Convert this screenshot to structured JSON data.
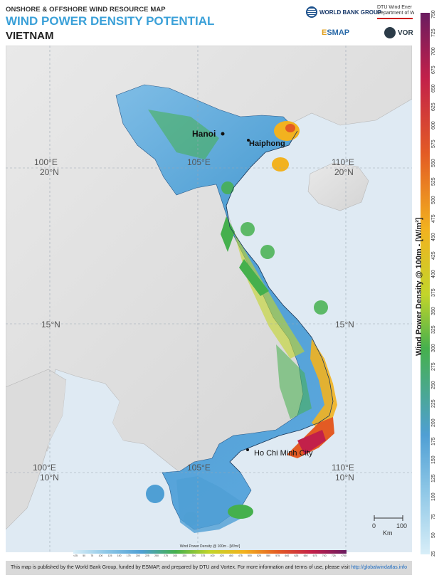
{
  "header": {
    "subtitle": "ONSHORE & OFFSHORE WIND RESOURCE MAP",
    "title": "WIND POWER DENSITY POTENTIAL",
    "country": "VIETNAM"
  },
  "logos": {
    "worldbank": "WORLD BANK GROUP",
    "dtu_line1": "DTU Wind Ener",
    "dtu_line2": "Department of W",
    "esmap_a": "E",
    "esmap_b": "SMAP",
    "vortex": "VOR"
  },
  "map": {
    "cities": [
      {
        "name": "Hanoi"
      },
      {
        "name": "Haiphong"
      },
      {
        "name": "Ho Chi Minh City"
      }
    ],
    "grid_labels": {
      "lon100_top": "100°E",
      "lat20_left": "20°N",
      "lon105_top": "105°E",
      "lon110_top": "110°E",
      "lat20_right": "20°N",
      "lat15_left": "15°N",
      "lat15_right": "15°N",
      "lon100_bot": "100°E",
      "lat10_left": "10°N",
      "lon105_bot": "105°E",
      "lon110_bot": "110°E",
      "lat10_right": "10°N"
    },
    "scalebar": {
      "zero": "0",
      "hundred": "100",
      "unit": "Km"
    }
  },
  "colorbar": {
    "label": "Wind Power Density @ 100m - [W/m²]",
    "ticks": [
      "25",
      "50",
      "75",
      "100",
      "125",
      "150",
      "175",
      "200",
      "225",
      "250",
      "275",
      "300",
      "325",
      "350",
      "375",
      "400",
      "425",
      "450",
      "475",
      "500",
      "525",
      "550",
      "575",
      "600",
      "625",
      "650",
      "675",
      "700",
      "725",
      "750"
    ],
    "colors": [
      "#d8eef8",
      "#8cc6e6",
      "#4f9fd4",
      "#45b04d",
      "#c3d52a",
      "#f2b21f",
      "#e35b24",
      "#c2204a",
      "#6a1c60"
    ]
  },
  "hbar": {
    "label": "Wind Power Density @ 100m - [W/m²]",
    "ticks": [
      "<25",
      "50",
      "75",
      "100",
      "125",
      "150",
      "175",
      "200",
      "225",
      "250",
      "275",
      "300",
      "325",
      "350",
      "375",
      "400",
      "425",
      "450",
      "475",
      "500",
      "525",
      "550",
      "575",
      "600",
      "625",
      "650",
      "675",
      "700",
      "725",
      ">750"
    ]
  },
  "footer": {
    "text": "This  map is published by the World Bank Group, funded by ESMAP, and prepared by DTU and Vortex. For more information and terms of use, please visit ",
    "link": "http://globalwindatlas.info"
  }
}
